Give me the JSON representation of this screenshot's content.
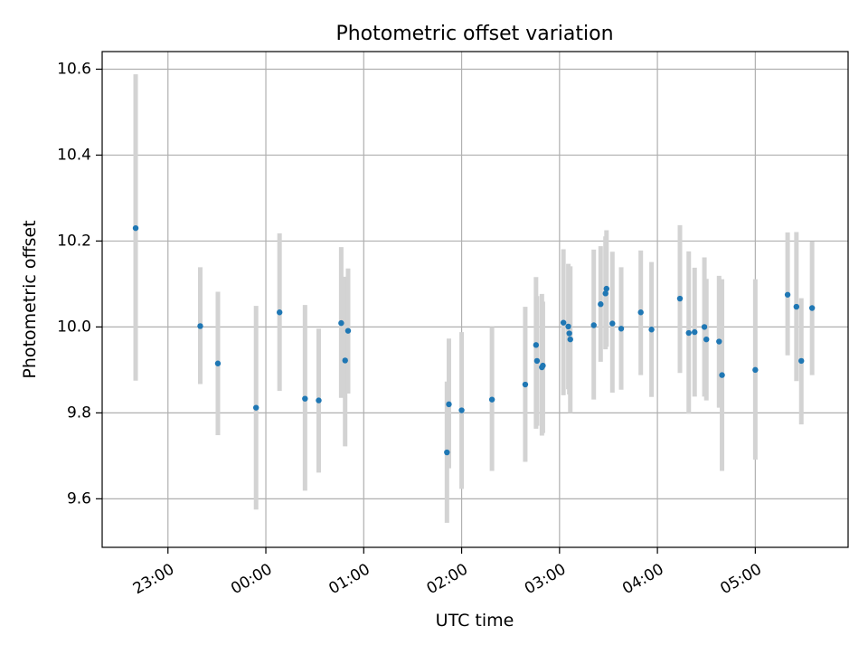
{
  "chart_data": {
    "type": "scatter",
    "title": "Photometric offset variation",
    "xlabel": "UTC time",
    "ylabel": "Photometric offset",
    "x_axis": {
      "unit": "UTC clock time (hours after 00:00, negative = previous evening)",
      "range": [
        -1.672,
        5.948
      ],
      "ticks": [
        {
          "value": -1,
          "label": "23:00"
        },
        {
          "value": 0,
          "label": "00:00"
        },
        {
          "value": 1,
          "label": "01:00"
        },
        {
          "value": 2,
          "label": "02:00"
        },
        {
          "value": 3,
          "label": "03:00"
        },
        {
          "value": 4,
          "label": "04:00"
        },
        {
          "value": 5,
          "label": "05:00"
        }
      ],
      "tick_label_rotation": 30
    },
    "y_axis": {
      "range": [
        9.487,
        10.641
      ],
      "ticks": [
        {
          "value": 9.6,
          "label": "9.6"
        },
        {
          "value": 9.8,
          "label": "9.8"
        },
        {
          "value": 10.0,
          "label": "10.0"
        },
        {
          "value": 10.2,
          "label": "10.2"
        },
        {
          "value": 10.4,
          "label": "10.4"
        },
        {
          "value": 10.6,
          "label": "10.6"
        }
      ]
    },
    "grid": true,
    "legend": "none",
    "marker_color": "#1f77b4",
    "errorbar_color": "#d3d3d3",
    "points": [
      {
        "x": -1.33,
        "y": 10.23,
        "err_lo": 9.875,
        "err_hi": 10.588
      },
      {
        "x": -0.67,
        "y": 10.002,
        "err_lo": 9.867,
        "err_hi": 10.139
      },
      {
        "x": -0.49,
        "y": 9.915,
        "err_lo": 9.748,
        "err_hi": 10.082
      },
      {
        "x": -0.1,
        "y": 9.812,
        "err_lo": 9.575,
        "err_hi": 10.049
      },
      {
        "x": 0.14,
        "y": 10.034,
        "err_lo": 9.851,
        "err_hi": 10.218
      },
      {
        "x": 0.4,
        "y": 9.833,
        "err_lo": 9.619,
        "err_hi": 10.051
      },
      {
        "x": 0.54,
        "y": 9.829,
        "err_lo": 9.661,
        "err_hi": 9.996
      },
      {
        "x": 0.77,
        "y": 10.009,
        "err_lo": 9.835,
        "err_hi": 10.186
      },
      {
        "x": 0.81,
        "y": 9.922,
        "err_lo": 9.722,
        "err_hi": 10.117
      },
      {
        "x": 0.84,
        "y": 9.991,
        "err_lo": 9.845,
        "err_hi": 10.136
      },
      {
        "x": 1.85,
        "y": 9.708,
        "err_lo": 9.544,
        "err_hi": 9.873
      },
      {
        "x": 1.87,
        "y": 9.82,
        "err_lo": 9.671,
        "err_hi": 9.973
      },
      {
        "x": 2.0,
        "y": 9.806,
        "err_lo": 9.623,
        "err_hi": 9.988
      },
      {
        "x": 2.31,
        "y": 9.831,
        "err_lo": 9.665,
        "err_hi": 10.0
      },
      {
        "x": 2.65,
        "y": 9.866,
        "err_lo": 9.686,
        "err_hi": 10.047
      },
      {
        "x": 2.76,
        "y": 9.958,
        "err_lo": 9.763,
        "err_hi": 10.116
      },
      {
        "x": 2.77,
        "y": 9.921,
        "err_lo": 9.77,
        "err_hi": 10.072
      },
      {
        "x": 2.82,
        "y": 9.906,
        "err_lo": 9.747,
        "err_hi": 10.077
      },
      {
        "x": 2.83,
        "y": 9.91,
        "err_lo": 9.753,
        "err_hi": 10.059
      },
      {
        "x": 3.04,
        "y": 10.01,
        "err_lo": 9.841,
        "err_hi": 10.181
      },
      {
        "x": 3.09,
        "y": 10.001,
        "err_lo": 9.855,
        "err_hi": 10.147
      },
      {
        "x": 3.1,
        "y": 9.985,
        "err_lo": 9.843,
        "err_hi": 10.13
      },
      {
        "x": 3.11,
        "y": 9.971,
        "err_lo": 9.8,
        "err_hi": 10.141
      },
      {
        "x": 3.35,
        "y": 10.004,
        "err_lo": 9.831,
        "err_hi": 10.18
      },
      {
        "x": 3.42,
        "y": 10.053,
        "err_lo": 9.919,
        "err_hi": 10.188
      },
      {
        "x": 3.47,
        "y": 10.078,
        "err_lo": 9.948,
        "err_hi": 10.211
      },
      {
        "x": 3.48,
        "y": 10.089,
        "err_lo": 9.954,
        "err_hi": 10.225
      },
      {
        "x": 3.54,
        "y": 10.008,
        "err_lo": 9.847,
        "err_hi": 10.175
      },
      {
        "x": 3.63,
        "y": 9.996,
        "err_lo": 9.854,
        "err_hi": 10.139
      },
      {
        "x": 3.83,
        "y": 10.034,
        "err_lo": 9.888,
        "err_hi": 10.178
      },
      {
        "x": 3.94,
        "y": 9.994,
        "err_lo": 9.837,
        "err_hi": 10.151
      },
      {
        "x": 4.23,
        "y": 10.066,
        "err_lo": 9.893,
        "err_hi": 10.237
      },
      {
        "x": 4.32,
        "y": 9.986,
        "err_lo": 9.798,
        "err_hi": 10.176
      },
      {
        "x": 4.38,
        "y": 9.988,
        "err_lo": 9.838,
        "err_hi": 10.138
      },
      {
        "x": 4.48,
        "y": 10.0,
        "err_lo": 9.838,
        "err_hi": 10.162
      },
      {
        "x": 4.5,
        "y": 9.971,
        "err_lo": 9.829,
        "err_hi": 10.112
      },
      {
        "x": 4.63,
        "y": 9.966,
        "err_lo": 9.812,
        "err_hi": 10.119
      },
      {
        "x": 4.66,
        "y": 9.888,
        "err_lo": 9.665,
        "err_hi": 10.111
      },
      {
        "x": 5.0,
        "y": 9.9,
        "err_lo": 9.691,
        "err_hi": 10.111
      },
      {
        "x": 5.33,
        "y": 10.075,
        "err_lo": 9.934,
        "err_hi": 10.22
      },
      {
        "x": 5.42,
        "y": 10.047,
        "err_lo": 9.874,
        "err_hi": 10.221
      },
      {
        "x": 5.47,
        "y": 9.921,
        "err_lo": 9.773,
        "err_hi": 10.067
      },
      {
        "x": 5.58,
        "y": 10.044,
        "err_lo": 9.888,
        "err_hi": 10.199
      }
    ]
  }
}
